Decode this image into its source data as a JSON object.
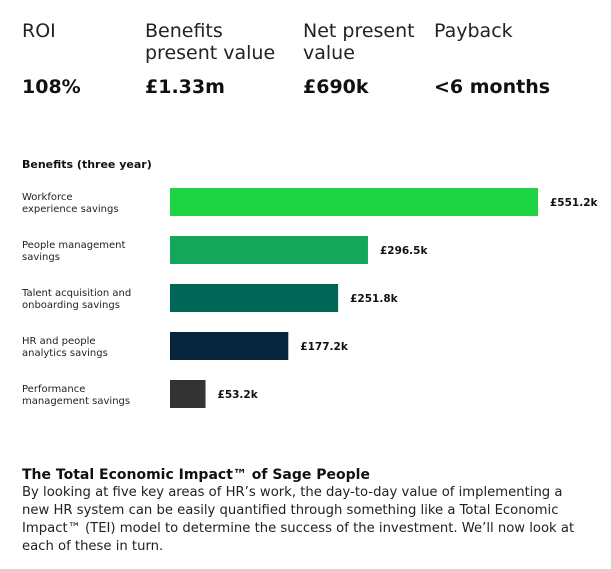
{
  "kpis": [
    {
      "label_lines": [
        "ROI"
      ],
      "value": "108%"
    },
    {
      "label_lines": [
        "Benefits",
        "present value"
      ],
      "value": "£1.33m"
    },
    {
      "label_lines": [
        "Net present",
        "value"
      ],
      "value": "£690k"
    },
    {
      "label_lines": [
        "Payback"
      ],
      "value": "<6 months"
    }
  ],
  "chart_data": {
    "type": "bar",
    "orientation": "horizontal",
    "title": "Benefits (three year)",
    "categories": [
      [
        "Workforce",
        "experience savings"
      ],
      [
        "People management",
        "savings"
      ],
      [
        "Talent acquisition and",
        "onboarding savings"
      ],
      [
        "HR and people",
        "analytics savings"
      ],
      [
        "Performance",
        "management savings"
      ]
    ],
    "values": [
      551.2,
      296.5,
      251.8,
      177.2,
      53.2
    ],
    "value_labels": [
      "£551.2k",
      "£296.5k",
      "£251.8k",
      "£177.2k",
      "£53.2k"
    ],
    "unit": "£k",
    "bar_colors": [
      "#1ed443",
      "#14a65a",
      "#006655",
      "#06243c",
      "#333333"
    ],
    "grid": false,
    "legend": "none"
  },
  "footer": {
    "title": "The Total Economic Impact™ of Sage People",
    "body": "By looking at five key areas of HR’s work, the day-to-day value of implementing a new HR system can be easily quantified through something like a Total Economic Impact™ (TEI) model to determine the success of the investment. We’ll now look at each of these in turn."
  }
}
